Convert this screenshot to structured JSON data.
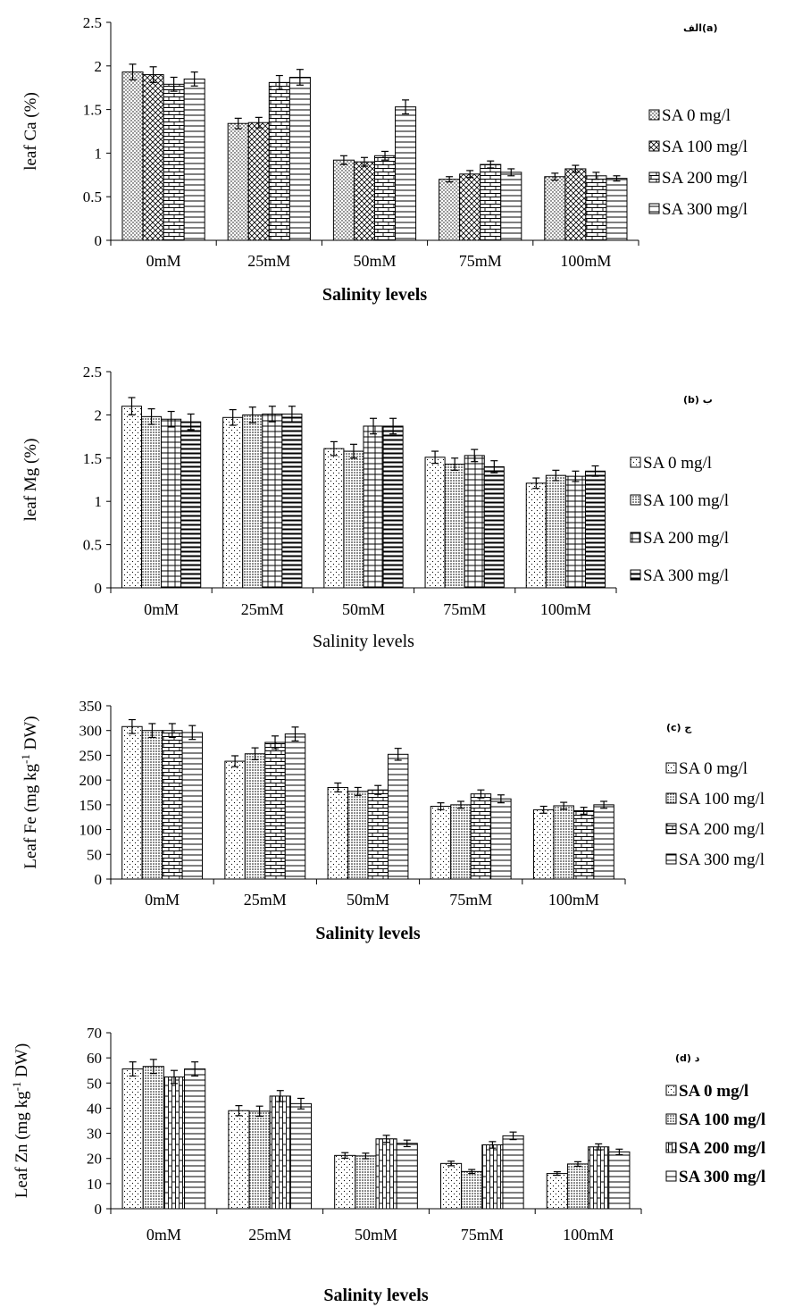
{
  "chart_data": [
    {
      "type": "bar",
      "panel_label": "الف(a)",
      "ylabel": "leaf  Ca  (%)",
      "xlabel": "Salinity levels",
      "xlabel_bold": true,
      "categories": [
        "0mM",
        "25mM",
        "50mM",
        "75mM",
        "100mM"
      ],
      "ylim": [
        0,
        2.5
      ],
      "yticks": [
        "0",
        "0.5",
        "1",
        "1.5",
        "2",
        "2.5"
      ],
      "legend_bold": false,
      "series": [
        {
          "name": "SA 0 mg/l",
          "values": [
            1.93,
            1.34,
            0.92,
            0.7,
            0.73
          ],
          "errors": [
            0.09,
            0.06,
            0.05,
            0.03,
            0.04
          ]
        },
        {
          "name": "SA 100 mg/l",
          "values": [
            1.9,
            1.35,
            0.9,
            0.76,
            0.82
          ],
          "errors": [
            0.09,
            0.06,
            0.05,
            0.04,
            0.04
          ]
        },
        {
          "name": "SA 200 mg/l",
          "values": [
            1.79,
            1.81,
            0.97,
            0.87,
            0.74
          ],
          "errors": [
            0.08,
            0.08,
            0.05,
            0.04,
            0.04
          ]
        },
        {
          "name": "SA 300 mg/l",
          "values": [
            1.85,
            1.87,
            1.53,
            0.78,
            0.71
          ],
          "errors": [
            0.08,
            0.09,
            0.08,
            0.04,
            0.03
          ]
        }
      ]
    },
    {
      "type": "bar",
      "panel_label": "(b) ب",
      "ylabel": "leaf  Mg  (%)",
      "xlabel": "Salinity levels",
      "xlabel_bold": false,
      "categories": [
        "0mM",
        "25mM",
        "50mM",
        "75mM",
        "100mM"
      ],
      "ylim": [
        0,
        2.5
      ],
      "yticks": [
        "0",
        "0.5",
        "1",
        "1.5",
        "2",
        "2.5"
      ],
      "legend_bold": false,
      "series": [
        {
          "name": "SA 0 mg/l",
          "values": [
            2.1,
            1.97,
            1.61,
            1.51,
            1.21
          ],
          "errors": [
            0.1,
            0.09,
            0.08,
            0.07,
            0.06
          ]
        },
        {
          "name": "SA 100 mg/l",
          "values": [
            1.98,
            2.0,
            1.58,
            1.43,
            1.3
          ],
          "errors": [
            0.09,
            0.09,
            0.08,
            0.07,
            0.06
          ]
        },
        {
          "name": "SA 200 mg/l",
          "values": [
            1.95,
            2.01,
            1.87,
            1.53,
            1.29
          ],
          "errors": [
            0.09,
            0.09,
            0.09,
            0.07,
            0.06
          ]
        },
        {
          "name": "SA 300 mg/l",
          "values": [
            1.92,
            2.01,
            1.87,
            1.4,
            1.35
          ],
          "errors": [
            0.09,
            0.09,
            0.09,
            0.07,
            0.06
          ]
        }
      ]
    },
    {
      "type": "bar",
      "panel_label": "(c) ج",
      "ylabel": "Leaf  Fe  (mg kg-1 DW)",
      "ylabel_main": "Leaf  Fe  (mg kg",
      "ylabel_sup": "-1",
      "ylabel_tail": " DW)",
      "xlabel": "Salinity levels",
      "xlabel_bold": true,
      "categories": [
        "0mM",
        "25mM",
        "50mM",
        "75mM",
        "100mM"
      ],
      "ylim": [
        0,
        350
      ],
      "yticks": [
        "0",
        "50",
        "100",
        "150",
        "200",
        "250",
        "300",
        "350"
      ],
      "legend_bold": false,
      "series": [
        {
          "name": "SA 0 mg/l",
          "values": [
            308,
            238,
            185,
            147,
            140
          ],
          "errors": [
            14,
            11,
            9,
            7,
            7
          ]
        },
        {
          "name": "SA 100 mg/l",
          "values": [
            300,
            253,
            177,
            150,
            148
          ],
          "errors": [
            14,
            12,
            8,
            7,
            7
          ]
        },
        {
          "name": "SA 200 mg/l",
          "values": [
            300,
            276,
            180,
            172,
            138
          ],
          "errors": [
            14,
            13,
            9,
            8,
            7
          ]
        },
        {
          "name": "SA 300 mg/l",
          "values": [
            296,
            293,
            252,
            162,
            150
          ],
          "errors": [
            14,
            14,
            12,
            8,
            7
          ]
        }
      ]
    },
    {
      "type": "bar",
      "panel_label": "(d) د",
      "ylabel": "Leaf  Zn  (mg kg-1 DW)",
      "ylabel_main": "Leaf  Zn  (mg kg",
      "ylabel_sup": "-1",
      "ylabel_tail": " DW)",
      "xlabel": "Salinity levels",
      "xlabel_bold": true,
      "categories": [
        "0mM",
        "25mM",
        "50mM",
        "75mM",
        "100mM"
      ],
      "ylim": [
        0,
        70
      ],
      "yticks": [
        "0",
        "10",
        "20",
        "30",
        "40",
        "50",
        "60",
        "70"
      ],
      "legend_bold": true,
      "series": [
        {
          "name": "SA 0 mg/l",
          "values": [
            55.6,
            39.0,
            21.2,
            18.0,
            14.0
          ],
          "errors": [
            2.8,
            2.0,
            1.1,
            0.9,
            0.7
          ]
        },
        {
          "name": "SA 100 mg/l",
          "values": [
            56.6,
            38.8,
            21.0,
            14.8,
            17.8
          ],
          "errors": [
            2.8,
            2.0,
            1.1,
            0.8,
            0.9
          ]
        },
        {
          "name": "SA 200 mg/l",
          "values": [
            52.4,
            44.8,
            27.8,
            25.4,
            24.6
          ],
          "errors": [
            2.6,
            2.2,
            1.4,
            1.3,
            1.2
          ]
        },
        {
          "name": "SA 300 mg/l",
          "values": [
            55.6,
            41.8,
            26.0,
            29.0,
            22.6
          ],
          "errors": [
            2.8,
            2.1,
            1.3,
            1.5,
            1.1
          ]
        }
      ]
    }
  ]
}
